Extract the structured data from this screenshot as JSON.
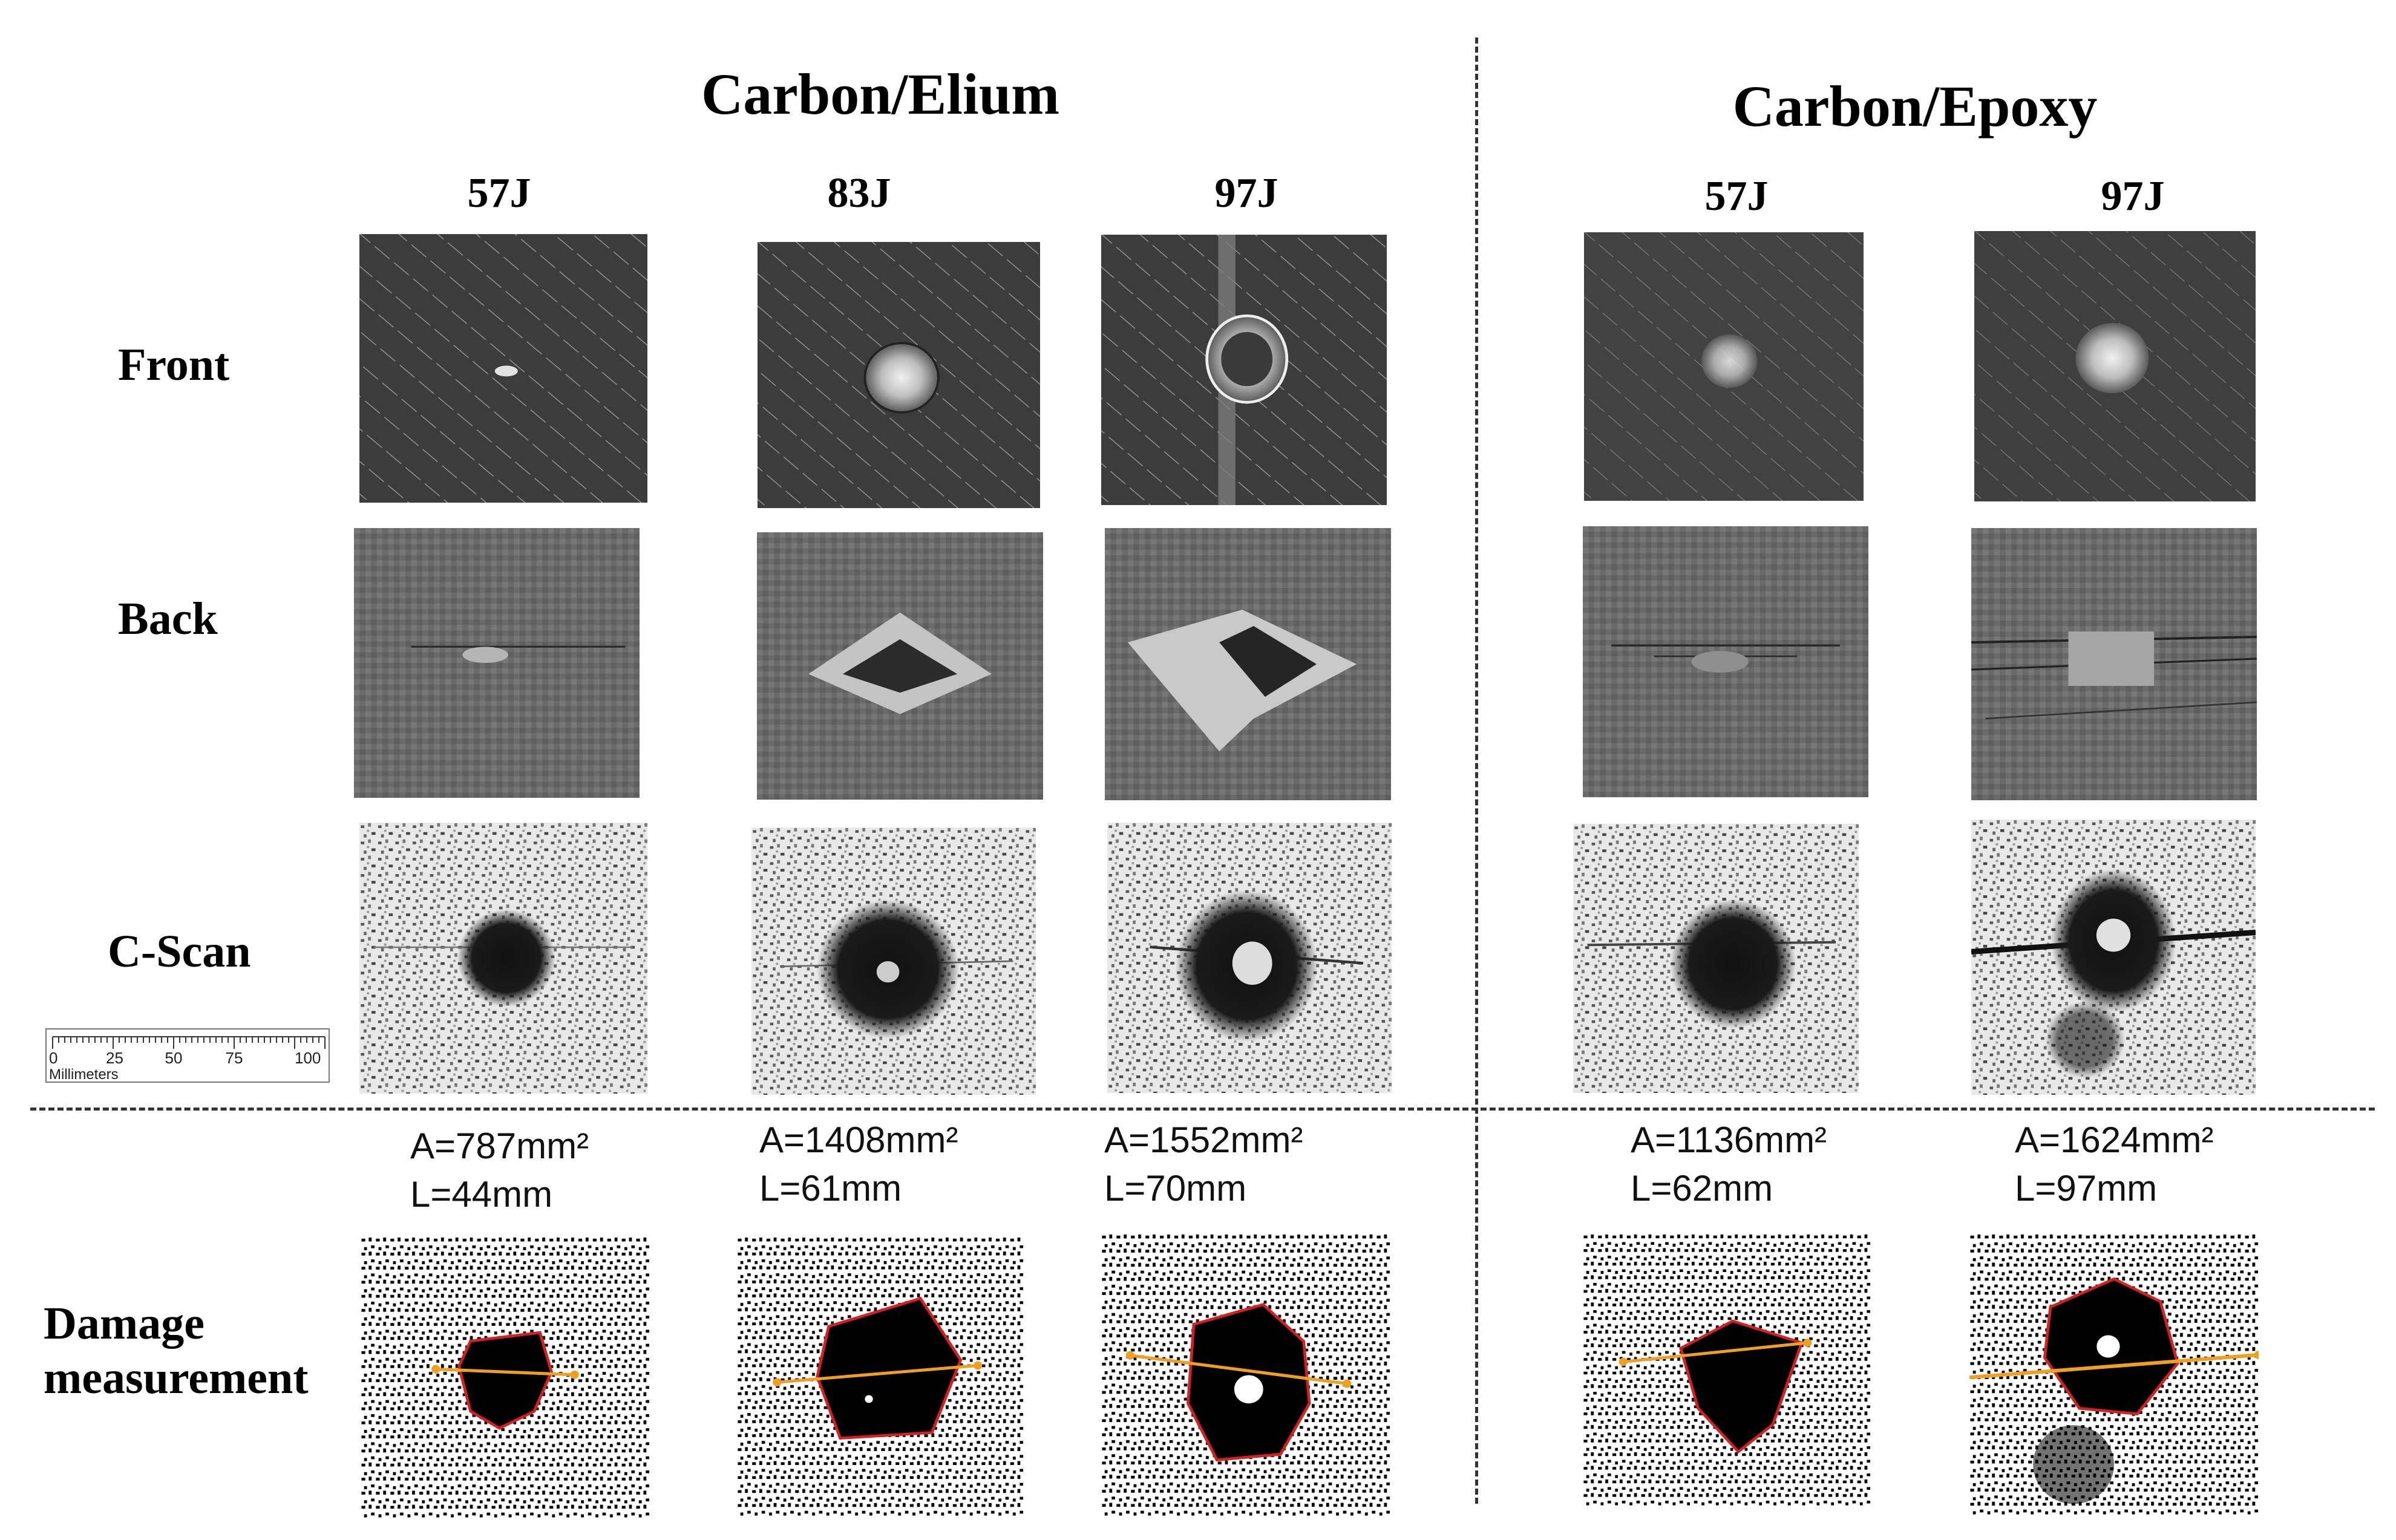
{
  "groups": [
    {
      "title": "Carbon/Elium"
    },
    {
      "title": "Carbon/Epoxy"
    }
  ],
  "energies": [
    "57J",
    "83J",
    "97J",
    "57J",
    "97J"
  ],
  "rows": {
    "front": "Front",
    "back": "Back",
    "cscan": "C-Scan",
    "damage_line1": "Damage",
    "damage_line2": "measurement"
  },
  "scale_bar": {
    "ticks": [
      "0",
      "25",
      "50",
      "75",
      "100"
    ],
    "unit": "Millimeters"
  },
  "measurements": [
    {
      "area": "A=787mm²",
      "length": "L=44mm"
    },
    {
      "area": "A=1408mm²",
      "length": "L=61mm"
    },
    {
      "area": "A=1552mm²",
      "length": "L=70mm"
    },
    {
      "area": "A=1136mm²",
      "length": "L=62mm"
    },
    {
      "area": "A=1624mm²",
      "length": "L=97mm"
    }
  ],
  "colors": {
    "outline": "#d32020",
    "measure_line": "#f0a020"
  }
}
